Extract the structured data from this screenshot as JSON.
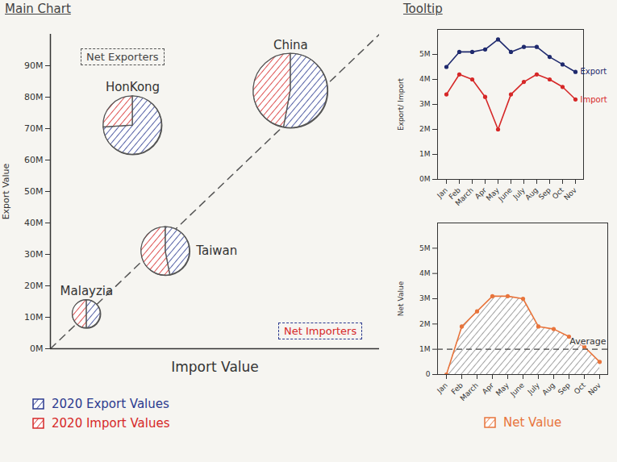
{
  "chart_data": [
    {
      "type": "scatter",
      "title": "Main Chart",
      "x_label": "Import Value",
      "y_label": "Export Value",
      "categories": [
        "China",
        "HonKong",
        "Taiwan",
        "Malayzia"
      ],
      "series": [
        {
          "name": "2020 Export Values",
          "color": "#2b3a8f",
          "values": [
            82,
            71,
            31,
            11
          ]
        },
        {
          "name": "2020 Import Values",
          "color": "#d62828",
          "values": [
            73,
            25,
            35,
            11
          ]
        }
      ],
      "xlim": [
        0,
        100
      ],
      "ylim": [
        0,
        100
      ],
      "yticks": [
        {
          "value": 0,
          "label": "0M"
        },
        {
          "value": 10,
          "label": "10M"
        },
        {
          "value": 20,
          "label": "20M"
        },
        {
          "value": 30,
          "label": "30M"
        },
        {
          "value": 40,
          "label": "40M"
        },
        {
          "value": 50,
          "label": "50M"
        },
        {
          "value": 60,
          "label": "60M"
        },
        {
          "value": 70,
          "label": "70M"
        },
        {
          "value": 80,
          "label": "80M"
        },
        {
          "value": 90,
          "label": "90M"
        }
      ],
      "tick_labels": "y",
      "legend": "bottom",
      "annotations": [
        "Net Exporters",
        "Net Importers"
      ]
    },
    {
      "type": "line",
      "title": "Tooltip",
      "y_label": "Export/ Import",
      "categories": [
        "Jan",
        "Feb",
        "March",
        "Apr",
        "May",
        "June",
        "July",
        "Aug",
        "Sep",
        "Oct",
        "Nov"
      ],
      "series": [
        {
          "name": "Export",
          "color": "#1f2a6e",
          "marker": "circle",
          "values": [
            4.5,
            5.1,
            5.1,
            5.2,
            5.6,
            5.1,
            5.3,
            5.3,
            4.9,
            4.6,
            4.3
          ]
        },
        {
          "name": "Import",
          "color": "#d62828",
          "marker": "circle",
          "values": [
            3.4,
            4.2,
            4.0,
            3.3,
            2.0,
            3.4,
            3.9,
            4.2,
            4.0,
            3.7,
            3.2
          ]
        }
      ],
      "ylim": [
        0,
        6
      ],
      "yticks": [
        {
          "value": 0,
          "label": "0M"
        },
        {
          "value": 1,
          "label": "1M"
        },
        {
          "value": 2,
          "label": "2M"
        },
        {
          "value": 3,
          "label": "3M"
        },
        {
          "value": 4,
          "label": "4M"
        },
        {
          "value": 5,
          "label": "5M"
        }
      ]
    },
    {
      "type": "area",
      "y_label": "Net Value",
      "categories": [
        "Jan",
        "Feb",
        "March",
        "Apr",
        "May",
        "June",
        "July",
        "Aug",
        "Sep",
        "Oct",
        "Nov"
      ],
      "series": [
        {
          "name": "Net Value",
          "color": "#e8743b",
          "marker": "circle",
          "values": [
            0,
            1.9,
            2.5,
            3.1,
            3.1,
            3.0,
            1.9,
            1.8,
            1.5,
            1.1,
            0.5
          ]
        }
      ],
      "ylim": [
        0,
        6
      ],
      "yticks": [
        0,
        {
          "value": 1,
          "label": "1M"
        },
        {
          "value": 2,
          "label": "2M"
        },
        {
          "value": 3,
          "label": "3M"
        },
        {
          "value": 4,
          "label": "4M"
        },
        {
          "value": 5,
          "label": "5M"
        }
      ],
      "average": {
        "label": "Average",
        "value": 1
      },
      "legend": "bottom"
    }
  ]
}
